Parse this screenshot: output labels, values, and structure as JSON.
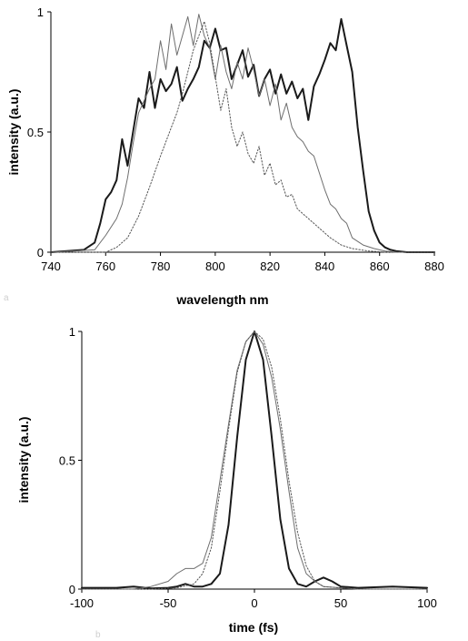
{
  "chart_data": [
    {
      "type": "line",
      "panel_letter": "a",
      "title": "",
      "xlabel": "wavelength nm",
      "ylabel": "intensity (a.u.)",
      "xlim": [
        740,
        880
      ],
      "ylim": [
        0,
        1
      ],
      "x_ticks": [
        740,
        760,
        780,
        800,
        820,
        840,
        860,
        880
      ],
      "y_ticks": [
        0,
        0.5,
        1
      ],
      "x_tick_labels": [
        "740",
        "760",
        "780",
        "800",
        "820",
        "840",
        "860",
        "880"
      ],
      "y_tick_labels": [
        "0",
        "0.5",
        "1"
      ],
      "grid": false,
      "legend": "none",
      "series": [
        {
          "style": "thick",
          "color": "#1a1a1a",
          "x": [
            740,
            752,
            756,
            758,
            760,
            762,
            764,
            766,
            768,
            770,
            772,
            774,
            776,
            778,
            780,
            782,
            784,
            786,
            788,
            790,
            792,
            794,
            796,
            798,
            800,
            802,
            804,
            806,
            808,
            810,
            812,
            814,
            816,
            818,
            820,
            822,
            824,
            826,
            828,
            830,
            832,
            834,
            836,
            838,
            840,
            842,
            844,
            846,
            848,
            850,
            852,
            854,
            856,
            858,
            860,
            862,
            864,
            866,
            870,
            880
          ],
          "y": [
            0,
            0.01,
            0.04,
            0.12,
            0.22,
            0.25,
            0.3,
            0.47,
            0.36,
            0.5,
            0.64,
            0.6,
            0.75,
            0.6,
            0.72,
            0.67,
            0.7,
            0.77,
            0.63,
            0.68,
            0.72,
            0.77,
            0.88,
            0.85,
            0.93,
            0.84,
            0.85,
            0.72,
            0.78,
            0.84,
            0.73,
            0.78,
            0.65,
            0.72,
            0.76,
            0.66,
            0.74,
            0.66,
            0.71,
            0.64,
            0.68,
            0.55,
            0.69,
            0.74,
            0.8,
            0.87,
            0.84,
            0.97,
            0.86,
            0.75,
            0.52,
            0.34,
            0.17,
            0.09,
            0.04,
            0.02,
            0.01,
            0.005,
            0,
            0
          ]
        },
        {
          "style": "thin",
          "color": "#6e6e6e",
          "x": [
            740,
            756,
            760,
            764,
            766,
            768,
            770,
            772,
            774,
            776,
            778,
            780,
            782,
            784,
            786,
            788,
            790,
            792,
            794,
            796,
            798,
            800,
            802,
            804,
            806,
            808,
            810,
            812,
            814,
            816,
            818,
            820,
            822,
            824,
            826,
            828,
            830,
            832,
            834,
            836,
            838,
            840,
            842,
            844,
            846,
            848,
            850,
            854,
            858,
            862,
            866,
            880
          ],
          "y": [
            0,
            0.01,
            0.07,
            0.14,
            0.2,
            0.31,
            0.45,
            0.58,
            0.63,
            0.68,
            0.72,
            0.88,
            0.76,
            0.95,
            0.82,
            0.9,
            0.98,
            0.86,
            0.99,
            0.9,
            0.85,
            0.72,
            0.86,
            0.75,
            0.68,
            0.79,
            0.72,
            0.85,
            0.76,
            0.65,
            0.72,
            0.61,
            0.7,
            0.55,
            0.62,
            0.52,
            0.48,
            0.46,
            0.42,
            0.4,
            0.33,
            0.26,
            0.2,
            0.18,
            0.14,
            0.12,
            0.06,
            0.03,
            0.015,
            0.005,
            0,
            0
          ]
        },
        {
          "style": "dotted",
          "color": "#555555",
          "x": [
            740,
            760,
            764,
            768,
            772,
            776,
            780,
            784,
            786,
            788,
            790,
            792,
            794,
            796,
            798,
            800,
            802,
            804,
            806,
            808,
            810,
            812,
            814,
            816,
            818,
            820,
            822,
            824,
            826,
            828,
            830,
            834,
            838,
            842,
            846,
            850,
            856,
            862,
            880
          ],
          "y": [
            0,
            0,
            0.02,
            0.06,
            0.15,
            0.27,
            0.4,
            0.52,
            0.58,
            0.66,
            0.75,
            0.84,
            0.9,
            0.96,
            0.87,
            0.73,
            0.59,
            0.68,
            0.52,
            0.44,
            0.5,
            0.41,
            0.37,
            0.44,
            0.32,
            0.37,
            0.28,
            0.3,
            0.23,
            0.24,
            0.18,
            0.14,
            0.1,
            0.06,
            0.03,
            0.015,
            0.005,
            0,
            0
          ]
        }
      ]
    },
    {
      "type": "line",
      "panel_letter": "b",
      "title": "",
      "xlabel": "time (fs)",
      "ylabel": "intensity (a.u.)",
      "xlim": [
        -100,
        100
      ],
      "ylim": [
        0,
        1
      ],
      "x_ticks": [
        -100,
        -50,
        0,
        50,
        100
      ],
      "y_ticks": [
        0,
        0.5,
        1
      ],
      "x_tick_labels": [
        "-100",
        "-50",
        "0",
        "50",
        "100"
      ],
      "y_tick_labels": [
        "0",
        "0.5",
        "1"
      ],
      "grid": false,
      "legend": "none",
      "series": [
        {
          "style": "thick",
          "color": "#1a1a1a",
          "x": [
            -100,
            -80,
            -70,
            -60,
            -50,
            -45,
            -40,
            -35,
            -30,
            -25,
            -20,
            -15,
            -10,
            -5,
            0,
            5,
            10,
            15,
            20,
            25,
            30,
            35,
            40,
            45,
            50,
            60,
            80,
            100
          ],
          "y": [
            0.005,
            0.005,
            0.01,
            0.003,
            0.005,
            0.01,
            0.02,
            0.01,
            0.01,
            0.02,
            0.06,
            0.25,
            0.59,
            0.89,
            1.0,
            0.89,
            0.59,
            0.27,
            0.08,
            0.02,
            0.01,
            0.03,
            0.045,
            0.03,
            0.01,
            0.005,
            0.01,
            0.005
          ]
        },
        {
          "style": "thin",
          "color": "#6e6e6e",
          "x": [
            -100,
            -70,
            -60,
            -50,
            -45,
            -40,
            -35,
            -30,
            -25,
            -20,
            -15,
            -10,
            -5,
            0,
            5,
            10,
            15,
            20,
            25,
            30,
            35,
            40,
            50,
            60,
            80,
            100
          ],
          "y": [
            0,
            0,
            0.01,
            0.03,
            0.06,
            0.08,
            0.08,
            0.1,
            0.2,
            0.42,
            0.64,
            0.85,
            0.96,
            1.0,
            0.95,
            0.82,
            0.62,
            0.38,
            0.16,
            0.06,
            0.03,
            0.01,
            0.005,
            0,
            0,
            0
          ]
        },
        {
          "style": "dotted",
          "color": "#555555",
          "x": [
            -100,
            -60,
            -45,
            -35,
            -30,
            -25,
            -20,
            -15,
            -10,
            -5,
            0,
            5,
            10,
            15,
            20,
            25,
            30,
            35,
            40,
            50,
            60,
            100
          ],
          "y": [
            0,
            0,
            0.005,
            0.02,
            0.06,
            0.16,
            0.38,
            0.62,
            0.84,
            0.96,
            1.0,
            0.97,
            0.86,
            0.66,
            0.42,
            0.22,
            0.09,
            0.03,
            0.01,
            0.005,
            0,
            0
          ]
        }
      ]
    }
  ]
}
